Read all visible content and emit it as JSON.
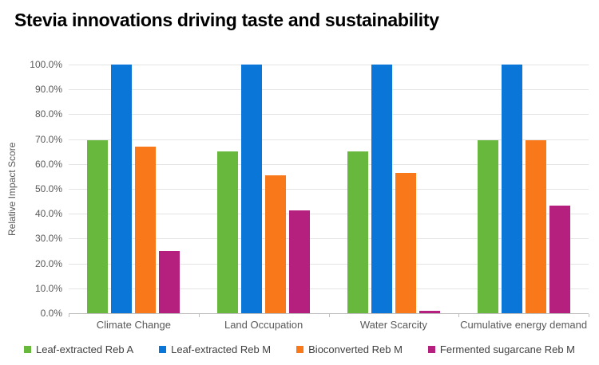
{
  "chart_data": {
    "type": "bar",
    "title": "Stevia innovations driving taste and sustainability",
    "xlabel": "",
    "ylabel": "Relative Impact Score",
    "ylim": [
      0,
      100
    ],
    "grid": true,
    "legend_position": "bottom",
    "yticks": [
      "0.0%",
      "10.0%",
      "20.0%",
      "30.0%",
      "40.0%",
      "50.0%",
      "60.0%",
      "70.0%",
      "80.0%",
      "90.0%",
      "100.0%"
    ],
    "categories": [
      "Climate Change",
      "Land Occupation",
      "Water Scarcity",
      "Cumulative energy demand"
    ],
    "series": [
      {
        "name": "Leaf-extracted Reb A",
        "color": "#69B83E",
        "values": [
          69.7,
          65.0,
          65.0,
          69.7
        ]
      },
      {
        "name": "Leaf-extracted Reb M",
        "color": "#0A76D8",
        "values": [
          100.0,
          100.0,
          100.0,
          100.0
        ]
      },
      {
        "name": "Bioconverted Reb M",
        "color": "#F9791A",
        "values": [
          67.0,
          55.5,
          56.5,
          69.7
        ]
      },
      {
        "name": "Fermented sugarcane Reb M",
        "color": "#B5207F",
        "values": [
          25.0,
          41.2,
          1.0,
          43.3
        ]
      }
    ]
  }
}
